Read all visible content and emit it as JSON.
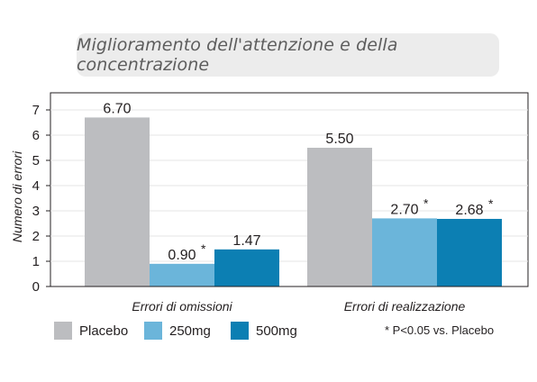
{
  "title": "Miglioramento dell'attenzione e della concentrazione",
  "footnote": "* P<0.05 vs. Placebo",
  "colors": {
    "placebo": "#bcbdc0",
    "mg250": "#6bb5da",
    "mg500": "#0c7fb3"
  },
  "chart_data": {
    "type": "bar",
    "title": "Miglioramento dell'attenzione e della concentrazione",
    "xlabel": "",
    "ylabel": "Numero di errori",
    "ylim": [
      0,
      7
    ],
    "yticks": [
      0,
      1,
      2,
      3,
      4,
      5,
      6,
      7
    ],
    "categories": [
      "Errori di omissioni",
      "Errori di realizzazione"
    ],
    "series": [
      {
        "name": "Placebo",
        "values": [
          6.7,
          5.5
        ],
        "labels": [
          "6.70",
          "5.50"
        ],
        "significant": [
          false,
          false
        ],
        "color": "#bcbdc0"
      },
      {
        "name": "250mg",
        "values": [
          0.9,
          2.7
        ],
        "labels": [
          "0.90",
          "2.70"
        ],
        "significant": [
          true,
          true
        ],
        "color": "#6bb5da"
      },
      {
        "name": "500mg",
        "values": [
          1.47,
          2.68
        ],
        "labels": [
          "1.47",
          "2.68"
        ],
        "significant": [
          false,
          true
        ],
        "color": "#0c7fb3"
      }
    ],
    "grid": true,
    "legend": "bottom-left"
  }
}
